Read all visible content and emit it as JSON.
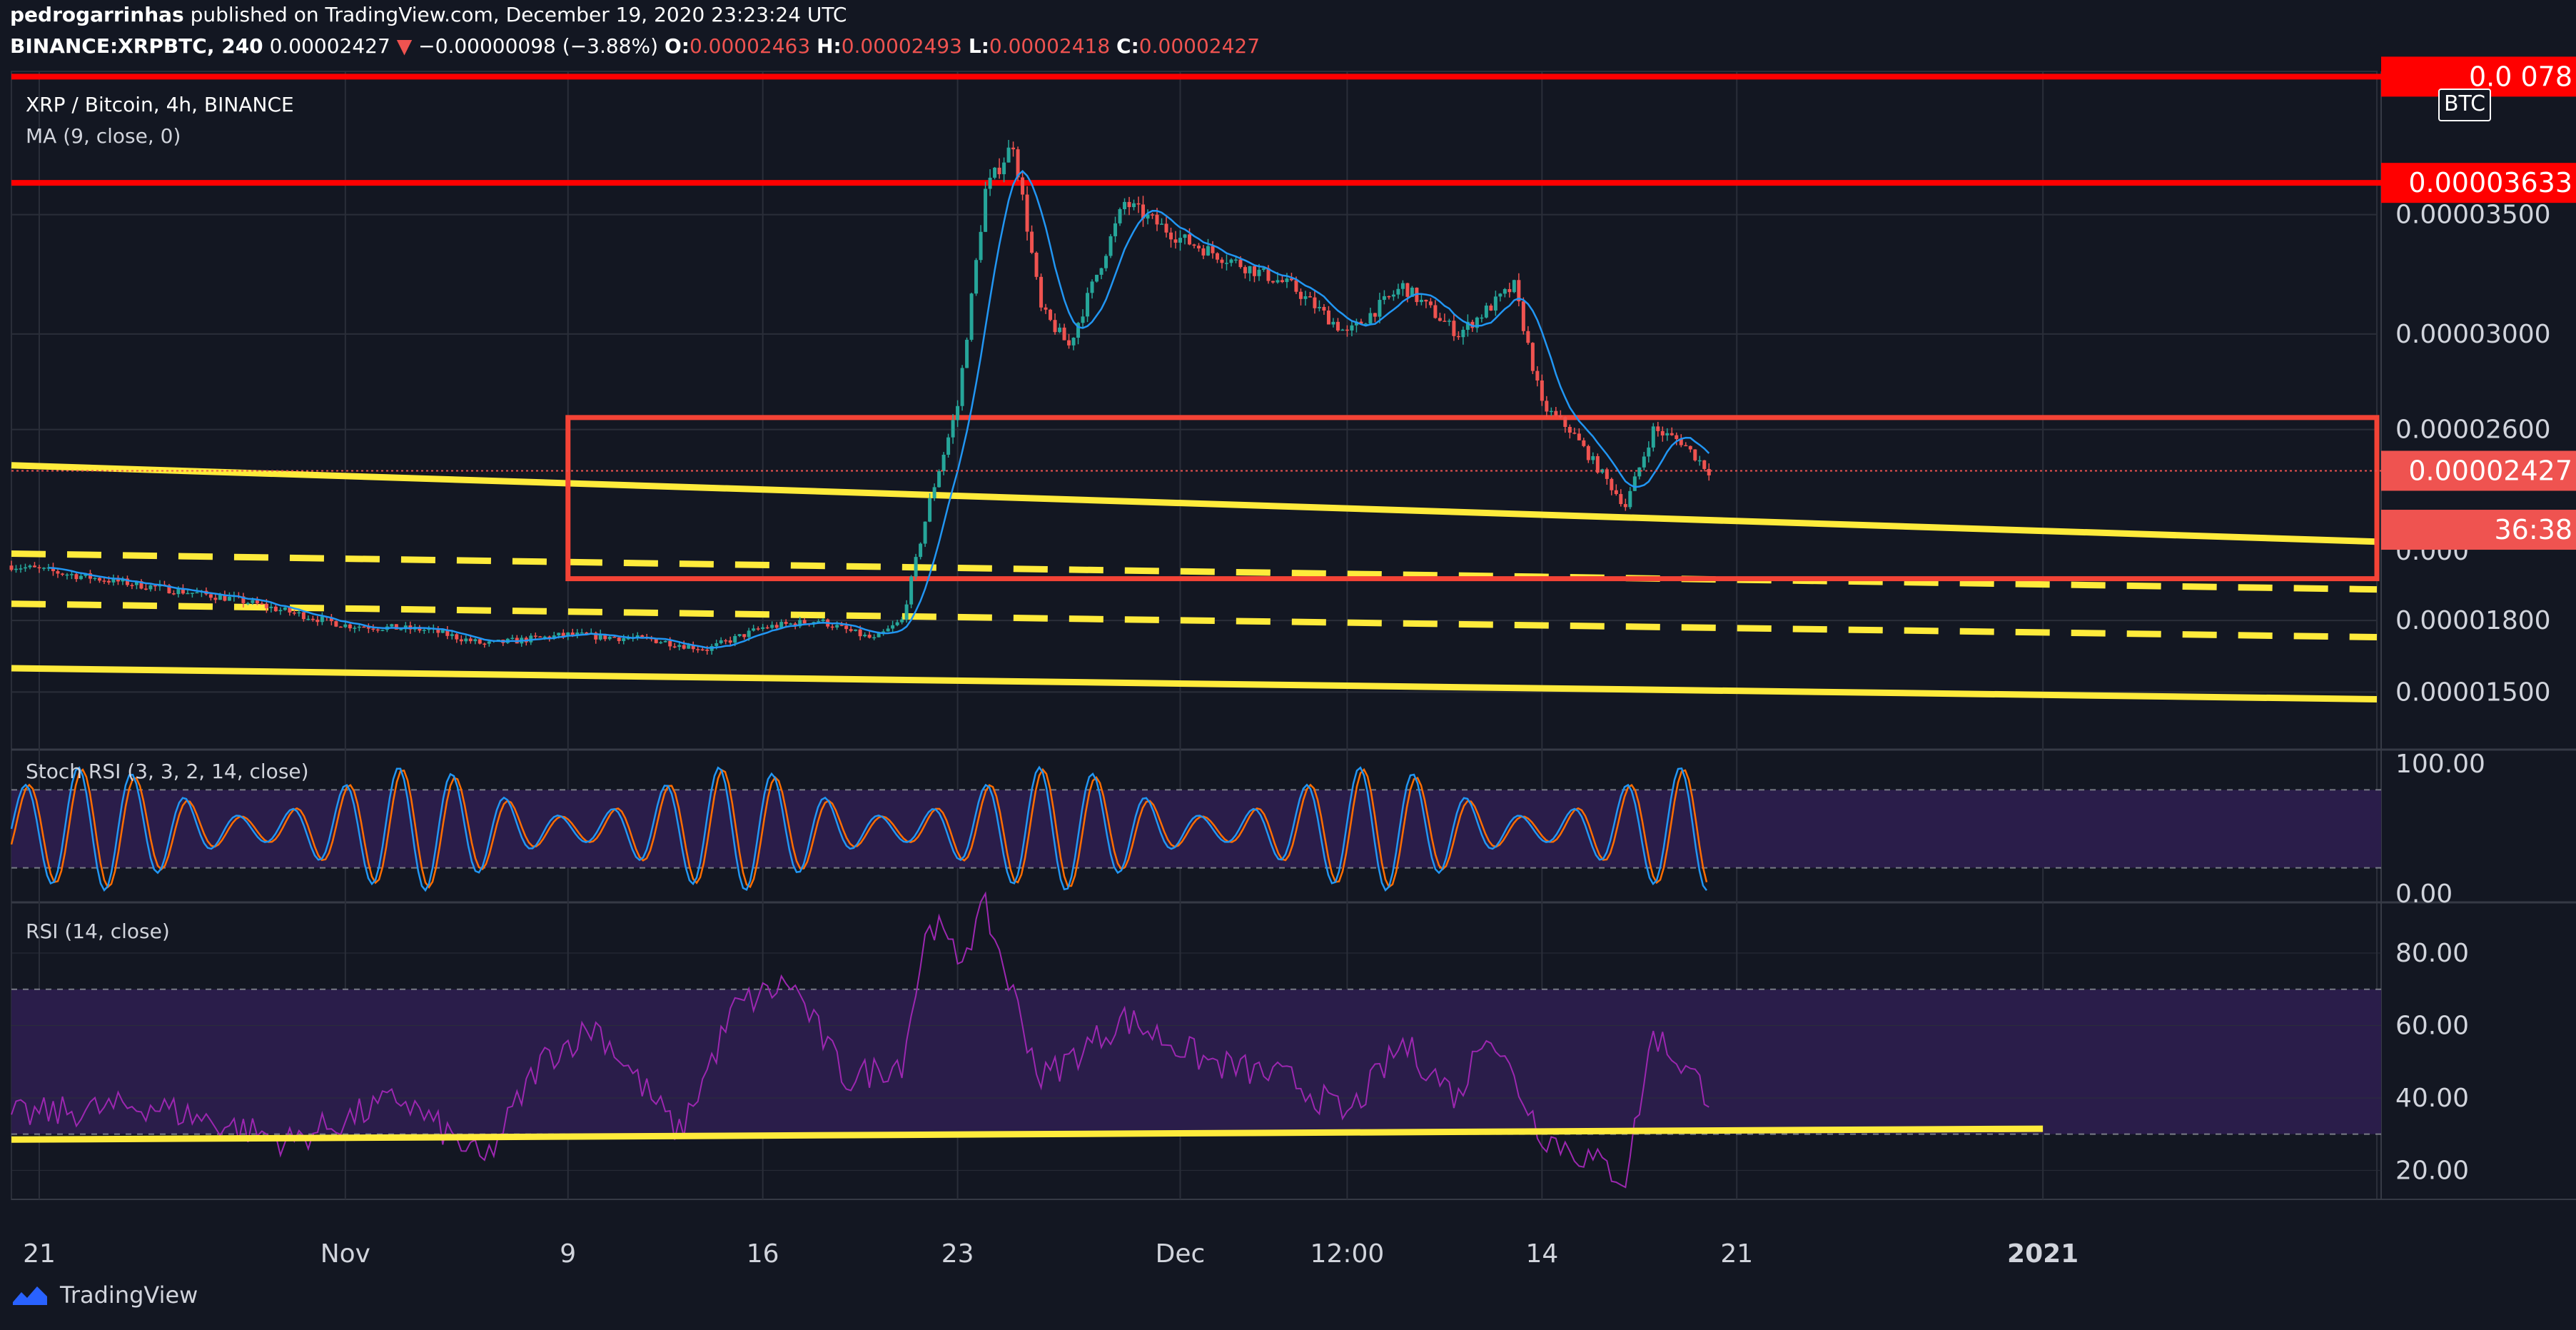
{
  "header": {
    "publisher": "pedrogarrinhas",
    "published_text": "published on TradingView.com, December 19, 2020 23:23:24 UTC",
    "symbol": "BINANCE:XRPBTC, 240",
    "last": "0.00002427",
    "change_arrow": "▼",
    "change": "−0.00000098 (−3.88%)",
    "o_label": "O:",
    "o_value": "0.00002463",
    "h_label": "H:",
    "h_value": "0.00002493",
    "l_label": "L:",
    "l_value": "0.00002418",
    "c_label": "C:",
    "c_value": "0.00002427"
  },
  "panels": {
    "price_title": "XRP / Bitcoin, 4h, BINANCE",
    "ma_label": "MA (9, close, 0)",
    "stoch_label": "Stoch RSI (3, 3, 2, 14, close)",
    "rsi_label": "RSI (14, close)",
    "currency_badge": "BTC"
  },
  "footer": {
    "brand": "TradingView"
  },
  "colors": {
    "background": "#131722",
    "grid": "#2a2e39",
    "candle_up": "#26a69a",
    "candle_down": "#ef5350",
    "ma_line": "#2196f3",
    "resistance_red": "#ff0000",
    "box_red": "#f44336",
    "trend_yellow": "#ffeb3b",
    "stoch_k": "#2196f3",
    "stoch_d": "#ff6d00",
    "rsi_line": "#9c27b0",
    "band_fill": "#2a1d4a"
  },
  "chart_data": {
    "type": "candlestick",
    "price_axis": {
      "ylim": [
        1.28e-05,
        4.1e-05
      ],
      "ticks": [
        "0.00001500",
        "0.00001800",
        "0.00002600",
        "0.00003000",
        "0.00003500"
      ],
      "obscured_tick": "0.000",
      "badges": [
        {
          "text": "0.00003633",
          "value": 3.633e-05,
          "color": "#ff0000"
        },
        {
          "text": "0.00002427",
          "value": 2.427e-05,
          "color": "#ef5350"
        },
        {
          "text": "36:38",
          "value": 2.18e-05,
          "color": "#ef5350"
        },
        {
          "text": "0.0   078",
          "value": 4.078e-05,
          "color": "#ff0000"
        }
      ]
    },
    "x_axis": {
      "range": [
        "2020-10-20",
        "2021-01-13"
      ],
      "ticks": [
        {
          "label": "21",
          "date": "2020-10-21"
        },
        {
          "label": "Nov",
          "date": "2020-11-01"
        },
        {
          "label": "9",
          "date": "2020-11-09"
        },
        {
          "label": "16",
          "date": "2020-11-16"
        },
        {
          "label": "23",
          "date": "2020-11-23"
        },
        {
          "label": "Dec",
          "date": "2020-12-01"
        },
        {
          "label": "12:00",
          "date": "2020-12-07"
        },
        {
          "label": "14",
          "date": "2020-12-14"
        },
        {
          "label": "21",
          "date": "2020-12-21"
        },
        {
          "label": "2021",
          "date": "2021-01-01"
        }
      ]
    },
    "price_path": [
      [
        "2020-10-20",
        2.03e-05
      ],
      [
        "2020-10-24",
        1.96e-05
      ],
      [
        "2020-10-28",
        1.89e-05
      ],
      [
        "2020-11-01",
        1.78e-05
      ],
      [
        "2020-11-04",
        1.76e-05
      ],
      [
        "2020-11-06",
        1.7e-05
      ],
      [
        "2020-11-09",
        1.74e-05
      ],
      [
        "2020-11-12",
        1.72e-05
      ],
      [
        "2020-11-14",
        1.68e-05
      ],
      [
        "2020-11-16",
        1.77e-05
      ],
      [
        "2020-11-18",
        1.8e-05
      ],
      [
        "2020-11-20",
        1.72e-05
      ],
      [
        "2020-11-21",
        1.8e-05
      ],
      [
        "2020-11-22",
        2.3e-05
      ],
      [
        "2020-11-23",
        2.7e-05
      ],
      [
        "2020-11-24",
        3.6e-05
      ],
      [
        "2020-11-25",
        3.8e-05
      ],
      [
        "2020-11-26",
        3.1e-05
      ],
      [
        "2020-11-27",
        2.95e-05
      ],
      [
        "2020-11-29",
        3.55e-05
      ],
      [
        "2020-12-01",
        3.4e-05
      ],
      [
        "2020-12-03",
        3.3e-05
      ],
      [
        "2020-12-05",
        3.2e-05
      ],
      [
        "2020-12-07",
        3e-05
      ],
      [
        "2020-12-09",
        3.2e-05
      ],
      [
        "2020-12-11",
        3e-05
      ],
      [
        "2020-12-13",
        3.2e-05
      ],
      [
        "2020-12-14",
        2.7e-05
      ],
      [
        "2020-12-15",
        2.6e-05
      ],
      [
        "2020-12-17",
        2.28e-05
      ],
      [
        "2020-12-18",
        2.6e-05
      ],
      [
        "2020-12-19",
        2.55e-05
      ],
      [
        "2020-12-20",
        2.427e-05
      ]
    ],
    "horizontal_lines": [
      4.078e-05,
      3.633e-05
    ],
    "box": {
      "x": [
        "2020-11-09",
        "2021-01-13"
      ],
      "y": [
        1.975e-05,
        2.65e-05
      ]
    },
    "trendlines": [
      {
        "style": "solid",
        "from": [
          "2020-10-20",
          2.45e-05
        ],
        "to": [
          "2021-01-13",
          2.13e-05
        ]
      },
      {
        "style": "dashed",
        "from": [
          "2020-10-20",
          2.08e-05
        ],
        "to": [
          "2021-01-13",
          1.93e-05
        ]
      },
      {
        "style": "dashed",
        "from": [
          "2020-10-20",
          1.87e-05
        ],
        "to": [
          "2021-01-13",
          1.73e-05
        ]
      },
      {
        "style": "solid",
        "from": [
          "2020-10-20",
          1.6e-05
        ],
        "to": [
          "2021-01-13",
          1.47e-05
        ]
      }
    ],
    "stoch_rsi": {
      "ylim": [
        0,
        100
      ],
      "ticks": [
        "100.00",
        "0.00"
      ],
      "bands": [
        20,
        80
      ]
    },
    "rsi": {
      "ylim": [
        12,
        94
      ],
      "ticks": [
        "80.00",
        "60.00",
        "40.00",
        "20.00"
      ],
      "bands": [
        30,
        70
      ],
      "path": [
        [
          "2020-10-20",
          35
        ],
        [
          "2020-10-25",
          38
        ],
        [
          "2020-10-30",
          28
        ],
        [
          "2020-11-03",
          40
        ],
        [
          "2020-11-06",
          22
        ],
        [
          "2020-11-08",
          50
        ],
        [
          "2020-11-10",
          60
        ],
        [
          "2020-11-13",
          30
        ],
        [
          "2020-11-15",
          65
        ],
        [
          "2020-11-17",
          72
        ],
        [
          "2020-11-19",
          45
        ],
        [
          "2020-11-21",
          50
        ],
        [
          "2020-11-22",
          90
        ],
        [
          "2020-11-23",
          78
        ],
        [
          "2020-11-24",
          92
        ],
        [
          "2020-11-26",
          45
        ],
        [
          "2020-11-29",
          62
        ],
        [
          "2020-12-02",
          50
        ],
        [
          "2020-12-05",
          45
        ],
        [
          "2020-12-07",
          35
        ],
        [
          "2020-12-09",
          55
        ],
        [
          "2020-12-11",
          40
        ],
        [
          "2020-12-12",
          60
        ],
        [
          "2020-12-14",
          30
        ],
        [
          "2020-12-17",
          18
        ],
        [
          "2020-12-18",
          58
        ],
        [
          "2020-12-20",
          41
        ]
      ],
      "trendline": {
        "from": [
          "2020-10-20",
          28.5
        ],
        "to": [
          "2021-01-01",
          31.5
        ]
      }
    }
  }
}
